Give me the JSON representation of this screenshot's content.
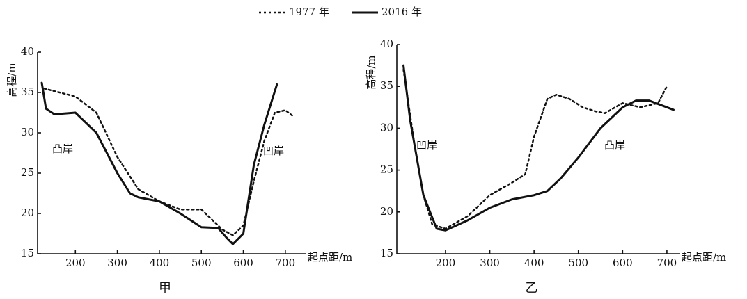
{
  "chart_data": [
    {
      "type": "line",
      "subtitle": "甲",
      "ylabel": "高程/m",
      "xlabel": "起点距/m",
      "xlim": [
        110,
        750
      ],
      "ylim": [
        15,
        40
      ],
      "xticks": [
        200,
        300,
        400,
        500,
        600,
        700
      ],
      "yticks": [
        15,
        20,
        25,
        30,
        35,
        40
      ],
      "annotations": [
        "凸岸",
        "凹岸"
      ],
      "series": [
        {
          "name": "1977 年",
          "color": "#111111",
          "dash": "dotted",
          "x": [
            125,
            200,
            250,
            300,
            350,
            400,
            450,
            500,
            550,
            575,
            600,
            625,
            650,
            675,
            700,
            720
          ],
          "values": [
            35.5,
            34.5,
            32.5,
            27,
            23,
            21.5,
            20.5,
            20.5,
            18,
            17.3,
            18.5,
            24,
            29,
            32.5,
            32.8,
            32
          ]
        },
        {
          "name": "2016 年",
          "color": "#111111",
          "dash": "solid",
          "x": [
            120,
            130,
            150,
            200,
            250,
            300,
            330,
            350,
            400,
            450,
            500,
            540,
            560,
            575,
            600,
            625,
            650,
            680
          ],
          "values": [
            36.2,
            33,
            32.3,
            32.5,
            30,
            25,
            22.5,
            22,
            21.5,
            20,
            18.3,
            18.2,
            17,
            16.2,
            17.5,
            26,
            31,
            36
          ]
        }
      ]
    },
    {
      "type": "line",
      "subtitle": "乙",
      "ylabel": "高程/m",
      "xlabel": "起点距/m",
      "xlim": [
        90,
        730
      ],
      "ylim": [
        15,
        40
      ],
      "xticks": [
        200,
        300,
        400,
        500,
        600,
        700
      ],
      "yticks": [
        15,
        20,
        25,
        30,
        35,
        40
      ],
      "annotations": [
        "凹岸",
        "凸岸"
      ],
      "series": [
        {
          "color": "#111111",
          "dash": "dotted",
          "x": [
            105,
            130,
            150,
            170,
            200,
            250,
            300,
            350,
            380,
            400,
            430,
            450,
            480,
            510,
            540,
            560,
            600,
            640,
            680,
            700
          ],
          "values": [
            37,
            28,
            22,
            18.5,
            18,
            19.5,
            22,
            23.5,
            24.5,
            29,
            33.5,
            34,
            33.5,
            32.5,
            32,
            31.8,
            33,
            32.5,
            33,
            35
          ]
        },
        {
          "color": "#111111",
          "dash": "solid",
          "x": [
            105,
            120,
            150,
            180,
            200,
            250,
            300,
            350,
            400,
            430,
            460,
            500,
            550,
            600,
            630,
            660,
            700,
            715
          ],
          "values": [
            37.5,
            31,
            22,
            18,
            17.8,
            19,
            20.5,
            21.5,
            22,
            22.5,
            24,
            26.5,
            30,
            32.5,
            33.3,
            33.3,
            32.5,
            32.2
          ]
        }
      ]
    }
  ]
}
